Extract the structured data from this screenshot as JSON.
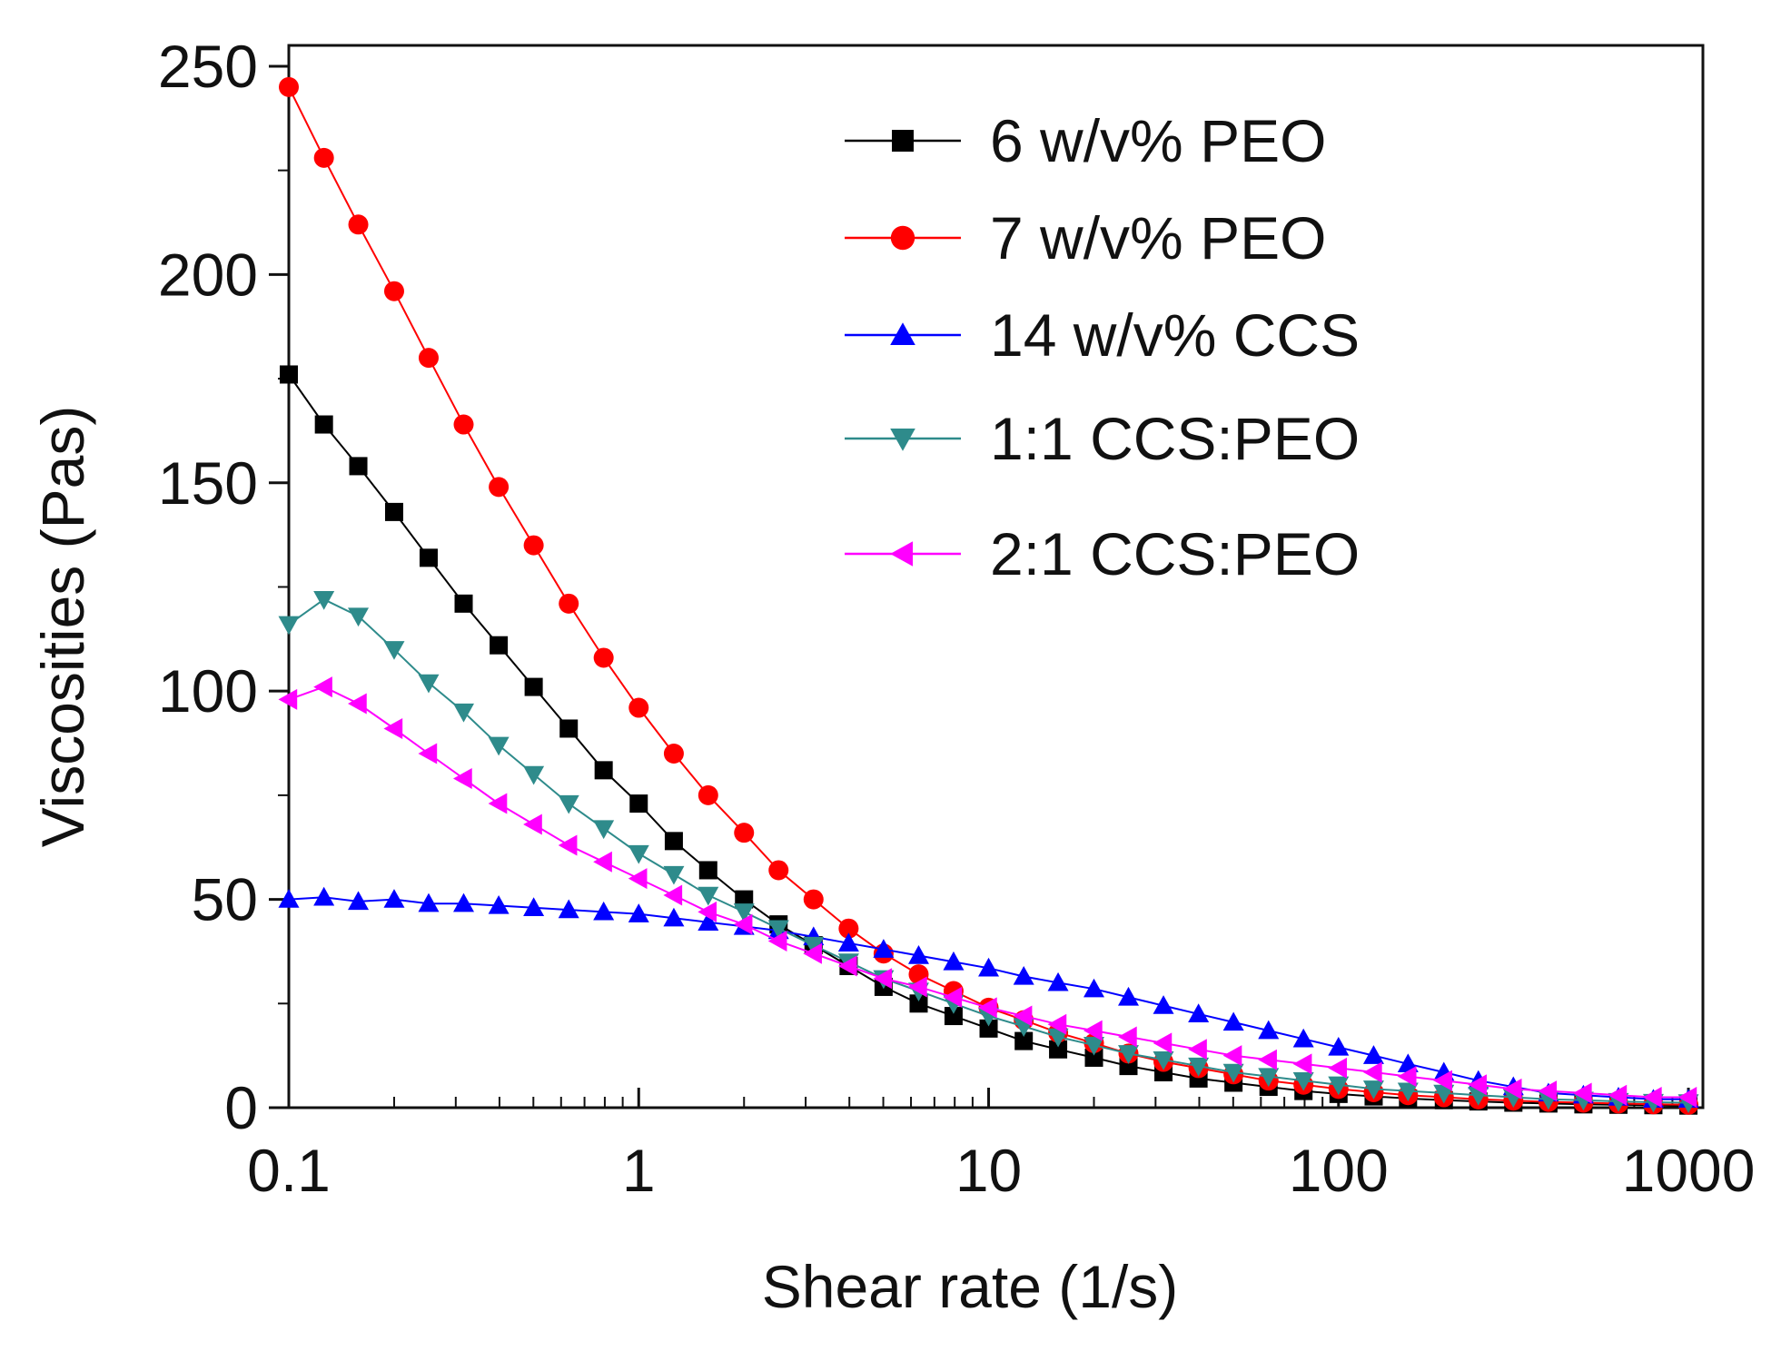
{
  "chart_data": {
    "type": "line",
    "title": "",
    "xlabel": "Shear rate (1/s)",
    "ylabel": "Viscosities (Pas)",
    "xscale": "log",
    "xlim": [
      0.1,
      1100
    ],
    "ylim": [
      0,
      255
    ],
    "xticks": [
      {
        "value": 0.1,
        "label": "0.1"
      },
      {
        "value": 1,
        "label": "1"
      },
      {
        "value": 10,
        "label": "10"
      },
      {
        "value": 100,
        "label": "100"
      },
      {
        "value": 1000,
        "label": "1000"
      }
    ],
    "yticks": [
      {
        "value": 0,
        "label": "0"
      },
      {
        "value": 50,
        "label": "50"
      },
      {
        "value": 100,
        "label": "100"
      },
      {
        "value": 150,
        "label": "150"
      },
      {
        "value": 200,
        "label": "200"
      },
      {
        "value": 250,
        "label": "250"
      }
    ],
    "legend_position": "top-right",
    "x": [
      0.1,
      0.126,
      0.158,
      0.2,
      0.251,
      0.316,
      0.398,
      0.501,
      0.631,
      0.794,
      1.0,
      1.26,
      1.58,
      2.0,
      2.51,
      3.16,
      3.98,
      5.01,
      6.31,
      7.94,
      10.0,
      12.6,
      15.8,
      20.0,
      25.1,
      31.6,
      39.8,
      50.1,
      63.1,
      79.4,
      100,
      126,
      158,
      200,
      251,
      316,
      398,
      501,
      631,
      794,
      1000
    ],
    "series": [
      {
        "name": "6 w/v% PEO",
        "color": "#000000",
        "marker": "square",
        "values": [
          176,
          164,
          154,
          143,
          132,
          121,
          111,
          101,
          91,
          81,
          73,
          64,
          57,
          50,
          44,
          39,
          34,
          29,
          25,
          22,
          19,
          16,
          14,
          12,
          10,
          8.5,
          7,
          6,
          5,
          4,
          3.3,
          2.7,
          2.2,
          1.8,
          1.5,
          1.2,
          1,
          0.8,
          0.7,
          0.6,
          0.5
        ]
      },
      {
        "name": "7 w/v% PEO",
        "color": "#ff0000",
        "marker": "circle",
        "values": [
          245,
          228,
          212,
          196,
          180,
          164,
          149,
          135,
          121,
          108,
          96,
          85,
          75,
          66,
          57,
          50,
          43,
          37,
          32,
          28,
          24,
          21,
          18,
          15.5,
          13,
          11,
          9.5,
          8,
          6.5,
          5.5,
          4.5,
          3.7,
          3,
          2.5,
          2,
          1.7,
          1.4,
          1.2,
          1,
          0.8,
          0.7
        ]
      },
      {
        "name": "14 w/v% CCS",
        "color": "#0000ff",
        "marker": "triangle-up",
        "values": [
          50,
          50.5,
          49.5,
          50,
          49,
          49,
          48.5,
          48,
          47.5,
          47,
          46.5,
          45.5,
          44.5,
          43.5,
          42.5,
          41,
          39.5,
          38,
          36.5,
          35,
          33.5,
          31.5,
          30,
          28.5,
          26.5,
          24.5,
          22.5,
          20.5,
          18.5,
          16.5,
          14.5,
          12.5,
          10.5,
          8.5,
          6.5,
          5,
          3.5,
          3,
          2.5,
          2,
          2
        ]
      },
      {
        "name": "1:1 CCS:PEO",
        "color": "#2e8b8b",
        "marker": "triangle-down",
        "values": [
          116,
          122,
          118,
          110,
          102,
          95,
          87,
          80,
          73,
          67,
          61,
          56,
          51,
          47,
          43,
          39,
          35,
          31,
          28,
          25,
          22,
          19.5,
          17,
          15,
          13,
          11.5,
          10,
          8.5,
          7.5,
          6.5,
          5.5,
          4.5,
          4,
          3.5,
          3,
          2.5,
          2,
          1.8,
          1.5,
          1.3,
          1.2
        ]
      },
      {
        "name": "2:1 CCS:PEO",
        "color": "#ff00ff",
        "marker": "triangle-left",
        "values": [
          98,
          101,
          97,
          91,
          85,
          79,
          73,
          68,
          63,
          59,
          55,
          51,
          47,
          44,
          40,
          37,
          34,
          31,
          29,
          26.5,
          24,
          22,
          20,
          18.5,
          17,
          15.5,
          14,
          12.5,
          11.5,
          10.5,
          9.5,
          8.5,
          7.5,
          6.5,
          5.5,
          4.5,
          4,
          3.5,
          3,
          2.5,
          2.5
        ]
      }
    ]
  }
}
